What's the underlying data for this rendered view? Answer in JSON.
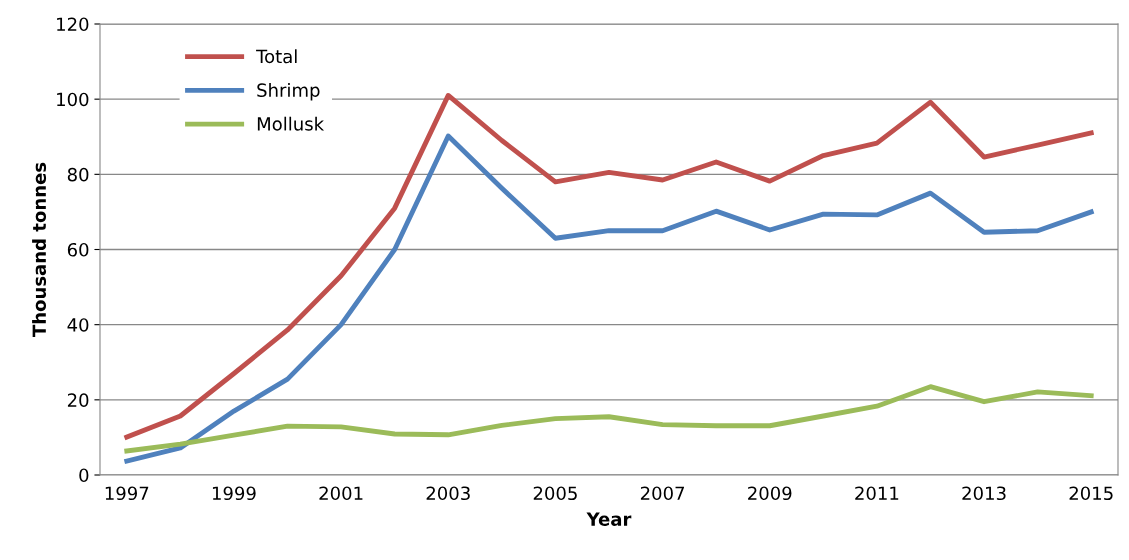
{
  "chart_data": {
    "type": "line",
    "xlabel": "Year",
    "ylabel": "Thousand tonnes",
    "categories": [
      "1997",
      null,
      "1999",
      null,
      "2001",
      null,
      "2003",
      null,
      "2005",
      null,
      "2007",
      null,
      "2009",
      null,
      "2011",
      null,
      "2013",
      null,
      "2015"
    ],
    "series": [
      {
        "name": "Total",
        "color": "#c0504d",
        "values": [
          10.1,
          15.7,
          27,
          38.6,
          53,
          71,
          101,
          89,
          78,
          80.5,
          78.5,
          83.3,
          78.2,
          85,
          88.3,
          99.2,
          84.6,
          87.8,
          91
        ]
      },
      {
        "name": "Shrimp",
        "color": "#4f81bd",
        "values": [
          3.7,
          7.2,
          17,
          25.5,
          40,
          60,
          90.2,
          76.3,
          63,
          65,
          65,
          70.2,
          65.2,
          69.4,
          69.2,
          75,
          64.6,
          65,
          70
        ]
      },
      {
        "name": "Mollusk",
        "color": "#9bbb59",
        "values": [
          6.4,
          8.2,
          10.6,
          13,
          12.8,
          10.9,
          10.7,
          13.2,
          15,
          15.5,
          13.4,
          13.1,
          13.1,
          15.7,
          18.3,
          23.5,
          19.5,
          22.1,
          21.1
        ]
      }
    ],
    "ylim": [
      0,
      120
    ],
    "yticks": [
      0,
      20,
      40,
      60,
      80,
      100,
      120
    ],
    "grid": "y",
    "legend": "top left",
    "marker": "none",
    "line_style": "solid"
  }
}
